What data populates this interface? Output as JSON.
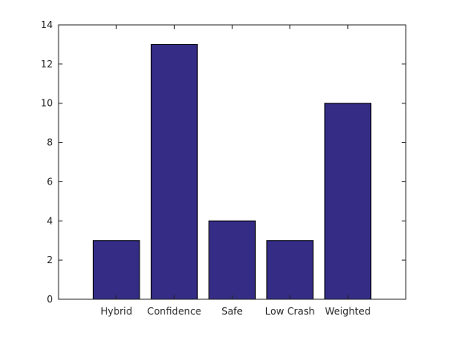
{
  "chart_data": {
    "type": "bar",
    "categories": [
      "Hybrid",
      "Confidence",
      "Safe",
      "Low Crash",
      "Weighted"
    ],
    "values": [
      3,
      13,
      4,
      3,
      10
    ],
    "ylim": [
      0,
      14
    ],
    "yticks": [
      0,
      2,
      4,
      6,
      8,
      10,
      12,
      14
    ],
    "xlim": [
      0,
      6
    ],
    "grid": false,
    "bar_color": "#342c85",
    "edge_color": "#000000",
    "axis_color": "#262626"
  }
}
